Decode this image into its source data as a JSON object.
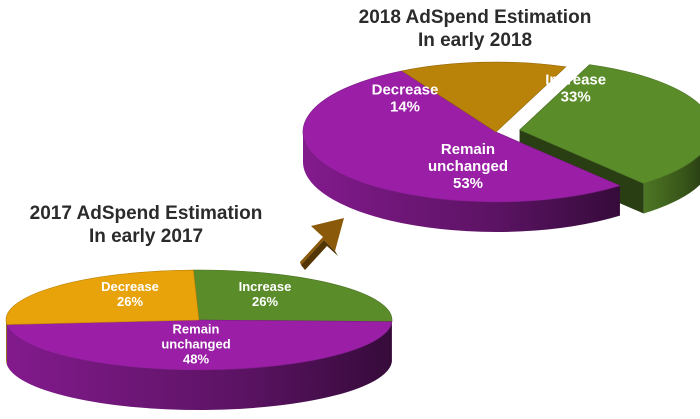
{
  "chart_data": [
    {
      "type": "pie",
      "title": "2018 AdSpend Estimation",
      "subtitle": "In early 2018",
      "slices": [
        {
          "label": "Increase",
          "value": 33,
          "value_label": "33%",
          "color": "#5b8c2a",
          "exploded": true
        },
        {
          "label": "Remain unchanged",
          "value": 53,
          "value_label": "53%",
          "color": "#9a1fa6",
          "exploded": false
        },
        {
          "label": "Decrease",
          "value": 14,
          "value_label": "14%",
          "color": "#b98208",
          "exploded": false
        }
      ]
    },
    {
      "type": "pie",
      "title": "2017 AdSpend Estimation",
      "subtitle": "In early 2017",
      "slices": [
        {
          "label": "Increase",
          "value": 26,
          "value_label": "26%",
          "color": "#5b8c2a",
          "exploded": false
        },
        {
          "label": "Remain unchanged",
          "value": 48,
          "value_label": "48%",
          "color": "#9a1fa6",
          "exploded": false
        },
        {
          "label": "Decrease",
          "value": 26,
          "value_label": "26%",
          "color": "#e8a20a",
          "exploded": false
        }
      ]
    }
  ],
  "arrow_icon": "arrow-up-right-icon",
  "colors": {
    "arrow": "#8a5a0a",
    "title": "#2b2b2b",
    "label": "#ffffff"
  }
}
